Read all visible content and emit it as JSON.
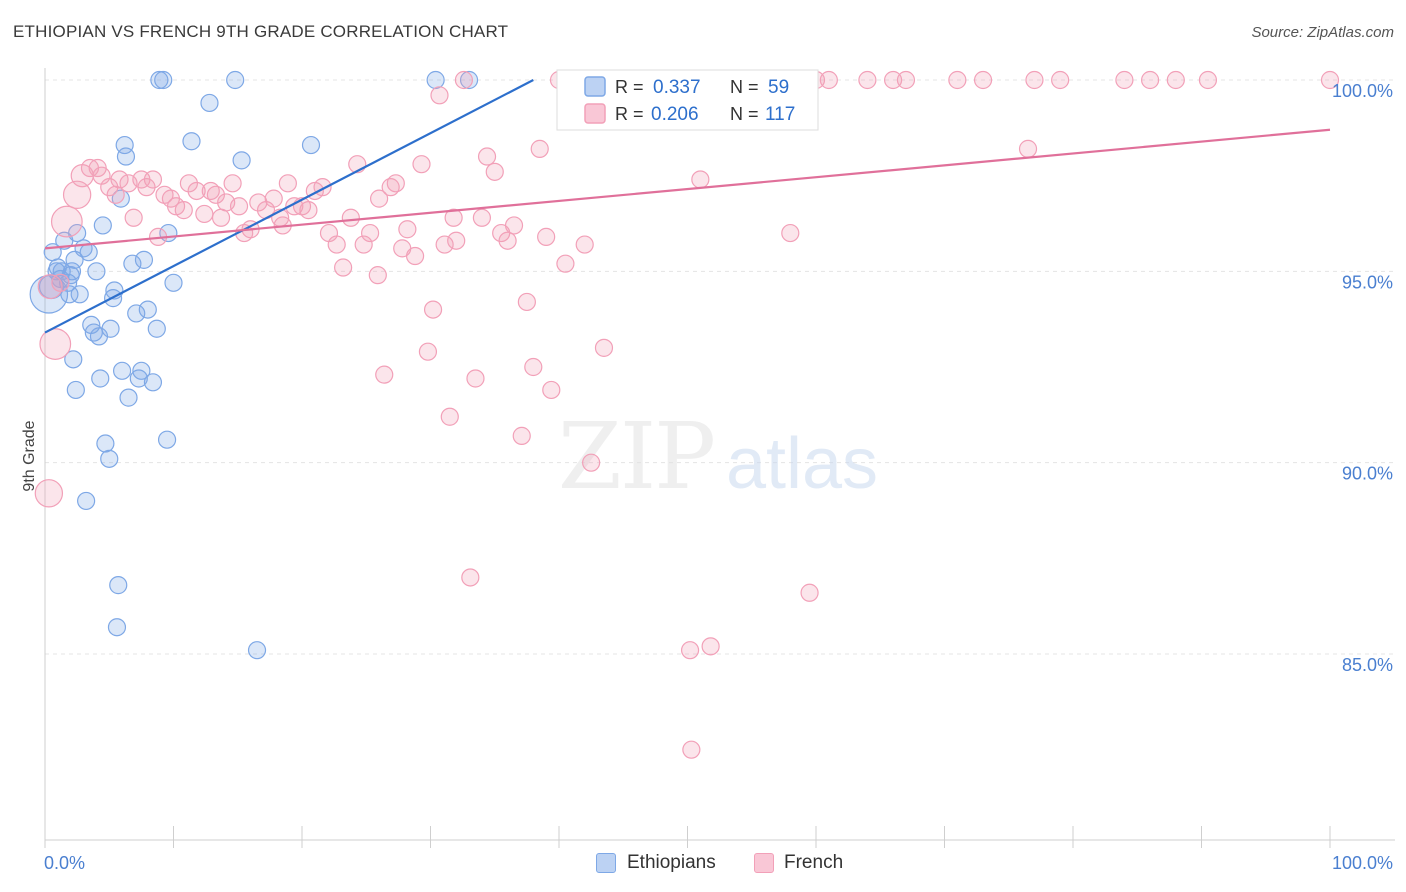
{
  "title": "ETHIOPIAN VS FRENCH 9TH GRADE CORRELATION CHART",
  "source": "Source: ZipAtlas.com",
  "watermark": {
    "zip": "ZIP",
    "atlas": "atlas"
  },
  "chart_data": {
    "type": "scatter",
    "title": "ETHIOPIAN VS FRENCH 9TH GRADE CORRELATION CHART",
    "xlabel": "",
    "ylabel": "9th Grade",
    "xlim": [
      0,
      100
    ],
    "ylim": [
      80.0,
      100.8
    ],
    "x_tick_labels": [
      "0.0%",
      "100.0%"
    ],
    "y_ticks": [
      85,
      90,
      95,
      100
    ],
    "y_tick_labels": [
      "85.0%",
      "90.0%",
      "95.0%",
      "100.0%"
    ],
    "grid": true,
    "legend_position": "bottom-center",
    "stats_box": {
      "r_label": "R =",
      "n_label": "N =",
      "rows": [
        {
          "series": "Ethiopians",
          "r": "0.337",
          "n": "59"
        },
        {
          "series": "French",
          "r": "0.206",
          "n": "117"
        }
      ]
    },
    "series": [
      {
        "name": "Ethiopians",
        "color": "#7ea8e6",
        "line_color": "#2d6fcc",
        "trend": {
          "x": [
            0,
            38
          ],
          "y": [
            93.4,
            100.0
          ]
        },
        "points": [
          [
            0.3,
            94.4,
            2.2
          ],
          [
            0.5,
            94.6,
            1.4
          ],
          [
            0.6,
            95.5,
            1
          ],
          [
            0.9,
            95.0,
            1
          ],
          [
            1.0,
            95.1,
            1
          ],
          [
            1.2,
            94.8,
            1
          ],
          [
            1.5,
            95.8,
            1
          ],
          [
            1.8,
            94.7,
            1
          ],
          [
            1.9,
            94.4,
            1
          ],
          [
            2.0,
            94.9,
            1
          ],
          [
            2.1,
            95.0,
            1
          ],
          [
            2.3,
            95.3,
            1
          ],
          [
            2.5,
            96.0,
            1
          ],
          [
            2.7,
            94.4,
            1
          ],
          [
            3.0,
            95.6,
            1
          ],
          [
            3.4,
            95.5,
            1
          ],
          [
            3.6,
            93.6,
            1
          ],
          [
            3.8,
            93.4,
            1
          ],
          [
            4.0,
            95.0,
            1
          ],
          [
            4.2,
            93.3,
            1
          ],
          [
            4.5,
            96.2,
            1
          ],
          [
            4.7,
            90.5,
            1
          ],
          [
            5.0,
            90.1,
            1
          ],
          [
            5.1,
            93.5,
            1
          ],
          [
            5.3,
            94.3,
            1
          ],
          [
            5.4,
            94.5,
            1
          ],
          [
            5.6,
            85.7,
            1
          ],
          [
            5.7,
            86.8,
            1
          ],
          [
            5.9,
            96.9,
            1
          ],
          [
            6.2,
            98.3,
            1
          ],
          [
            6.3,
            98.0,
            1
          ],
          [
            6.5,
            91.7,
            1
          ],
          [
            6.8,
            95.2,
            1
          ],
          [
            7.1,
            93.9,
            1
          ],
          [
            7.3,
            92.2,
            1
          ],
          [
            7.5,
            92.4,
            1
          ],
          [
            7.7,
            95.3,
            1
          ],
          [
            8.0,
            94.0,
            1
          ],
          [
            8.4,
            92.1,
            1
          ],
          [
            8.7,
            93.5,
            1
          ],
          [
            8.9,
            100.0,
            1
          ],
          [
            9.2,
            100.0,
            1
          ],
          [
            9.5,
            90.6,
            1
          ],
          [
            9.6,
            96.0,
            1
          ],
          [
            10.0,
            94.7,
            1
          ],
          [
            11.4,
            98.4,
            1
          ],
          [
            12.8,
            99.4,
            1
          ],
          [
            14.8,
            100.0,
            1
          ],
          [
            15.3,
            97.9,
            1
          ],
          [
            16.5,
            85.1,
            1
          ],
          [
            20.7,
            98.3,
            1
          ],
          [
            30.4,
            100.0,
            1
          ],
          [
            33.0,
            100.0,
            1
          ],
          [
            2.2,
            92.7,
            1
          ],
          [
            2.4,
            91.9,
            1
          ],
          [
            4.3,
            92.2,
            1
          ],
          [
            3.2,
            89.0,
            1
          ],
          [
            6.0,
            92.4,
            1
          ],
          [
            1.3,
            95.0,
            1
          ]
        ]
      },
      {
        "name": "French",
        "color": "#f2a0b8",
        "line_color": "#e0709a",
        "trend": {
          "x": [
            0,
            100
          ],
          "y": [
            95.6,
            98.7
          ]
        },
        "points": [
          [
            0.3,
            89.2,
            1.6
          ],
          [
            0.4,
            94.6,
            1.4
          ],
          [
            0.8,
            93.1,
            1.8
          ],
          [
            1.2,
            94.7,
            1
          ],
          [
            1.7,
            96.3,
            1.8
          ],
          [
            2.5,
            97.0,
            1.6
          ],
          [
            2.9,
            97.5,
            1.3
          ],
          [
            3.5,
            97.7,
            1
          ],
          [
            4.1,
            97.7,
            1
          ],
          [
            4.4,
            97.5,
            1
          ],
          [
            5.0,
            97.2,
            1
          ],
          [
            5.5,
            97.0,
            1
          ],
          [
            5.8,
            97.4,
            1
          ],
          [
            6.5,
            97.3,
            1
          ],
          [
            6.9,
            96.4,
            1
          ],
          [
            7.5,
            97.4,
            1
          ],
          [
            7.9,
            97.2,
            1
          ],
          [
            8.4,
            97.4,
            1
          ],
          [
            8.8,
            95.9,
            1
          ],
          [
            9.3,
            97.0,
            1
          ],
          [
            9.8,
            96.9,
            1
          ],
          [
            10.2,
            96.7,
            1
          ],
          [
            10.8,
            96.6,
            1
          ],
          [
            11.2,
            97.3,
            1
          ],
          [
            11.8,
            97.1,
            1
          ],
          [
            12.4,
            96.5,
            1
          ],
          [
            12.9,
            97.1,
            1
          ],
          [
            13.3,
            97.0,
            1
          ],
          [
            13.7,
            96.4,
            1
          ],
          [
            14.1,
            96.8,
            1
          ],
          [
            14.6,
            97.3,
            1
          ],
          [
            15.1,
            96.7,
            1
          ],
          [
            15.5,
            96.0,
            1
          ],
          [
            16.0,
            96.1,
            1
          ],
          [
            16.6,
            96.8,
            1
          ],
          [
            17.2,
            96.6,
            1
          ],
          [
            17.8,
            96.9,
            1
          ],
          [
            18.3,
            96.4,
            1
          ],
          [
            18.9,
            97.3,
            1
          ],
          [
            19.4,
            96.7,
            1
          ],
          [
            20.0,
            96.7,
            1
          ],
          [
            20.5,
            96.6,
            1
          ],
          [
            21.0,
            97.1,
            1
          ],
          [
            21.6,
            97.2,
            1
          ],
          [
            22.1,
            96.0,
            1
          ],
          [
            22.7,
            95.7,
            1
          ],
          [
            23.2,
            95.1,
            1
          ],
          [
            23.8,
            96.4,
            1
          ],
          [
            24.3,
            97.8,
            1
          ],
          [
            24.8,
            95.7,
            1
          ],
          [
            25.3,
            96.0,
            1
          ],
          [
            25.9,
            94.9,
            1
          ],
          [
            26.4,
            92.3,
            1
          ],
          [
            26.9,
            97.2,
            1
          ],
          [
            27.3,
            97.3,
            1
          ],
          [
            27.8,
            95.6,
            1
          ],
          [
            28.2,
            96.1,
            1
          ],
          [
            28.8,
            95.4,
            1
          ],
          [
            29.3,
            97.8,
            1
          ],
          [
            29.8,
            92.9,
            1
          ],
          [
            30.2,
            94.0,
            1
          ],
          [
            30.7,
            99.6,
            1
          ],
          [
            31.1,
            95.7,
            1
          ],
          [
            31.5,
            91.2,
            1
          ],
          [
            32.0,
            95.8,
            1
          ],
          [
            32.6,
            100.0,
            1
          ],
          [
            33.1,
            87.0,
            1
          ],
          [
            33.5,
            92.2,
            1
          ],
          [
            34.0,
            96.4,
            1
          ],
          [
            34.4,
            98.0,
            1
          ],
          [
            35.0,
            97.6,
            1
          ],
          [
            35.5,
            96.0,
            1
          ],
          [
            36.0,
            95.8,
            1
          ],
          [
            36.5,
            96.2,
            1
          ],
          [
            37.1,
            90.7,
            1
          ],
          [
            37.5,
            94.2,
            1
          ],
          [
            38.0,
            92.5,
            1
          ],
          [
            38.5,
            98.2,
            1
          ],
          [
            39.0,
            95.9,
            1
          ],
          [
            39.4,
            91.9,
            1
          ],
          [
            40.0,
            100.0,
            1
          ],
          [
            40.5,
            95.2,
            1
          ],
          [
            41.0,
            100.0,
            1
          ],
          [
            41.5,
            100.0,
            1
          ],
          [
            42.0,
            95.7,
            1
          ],
          [
            42.5,
            90.0,
            1
          ],
          [
            43.0,
            100.0,
            1
          ],
          [
            43.5,
            93.0,
            1
          ],
          [
            46.0,
            100.0,
            1
          ],
          [
            50.0,
            100.0,
            1
          ],
          [
            50.2,
            85.1,
            1
          ],
          [
            50.3,
            82.5,
            1
          ],
          [
            50.5,
            100.0,
            1
          ],
          [
            51.0,
            97.4,
            1
          ],
          [
            51.8,
            85.2,
            1
          ],
          [
            54.0,
            100.0,
            1
          ],
          [
            56.0,
            100.0,
            1
          ],
          [
            58.0,
            96.0,
            1
          ],
          [
            59.5,
            86.6,
            1
          ],
          [
            60.0,
            100.0,
            1
          ],
          [
            61.0,
            100.0,
            1
          ],
          [
            64.0,
            100.0,
            1
          ],
          [
            66.0,
            100.0,
            1
          ],
          [
            67.0,
            100.0,
            1
          ],
          [
            71.0,
            100.0,
            1
          ],
          [
            73.0,
            100.0,
            1
          ],
          [
            76.5,
            98.2,
            1
          ],
          [
            77.0,
            100.0,
            1
          ],
          [
            79.0,
            100.0,
            1
          ],
          [
            84.0,
            100.0,
            1
          ],
          [
            86.0,
            100.0,
            1
          ],
          [
            88.0,
            100.0,
            1
          ],
          [
            90.5,
            100.0,
            1
          ],
          [
            100.0,
            100.0,
            1
          ],
          [
            18.5,
            96.2,
            1
          ],
          [
            26.0,
            96.9,
            1
          ],
          [
            31.8,
            96.4,
            1
          ]
        ]
      }
    ]
  }
}
